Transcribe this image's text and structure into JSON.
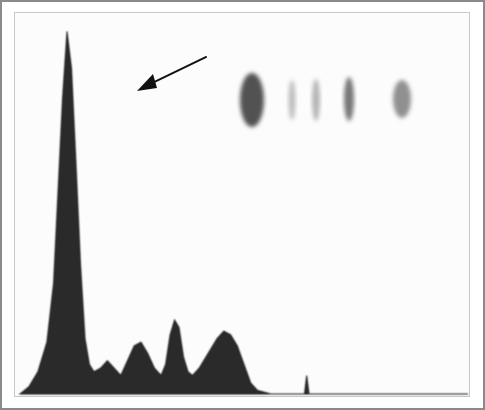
{
  "figure": {
    "peak_fill_color": "#2b2b2b",
    "band_color": "#4a4a4a",
    "arrow_color": "#111111",
    "frame_color": "#8a8a8a"
  },
  "profile_points": [
    [
      0.0,
      0.0
    ],
    [
      0.02,
      0.02
    ],
    [
      0.04,
      0.06
    ],
    [
      0.06,
      0.14
    ],
    [
      0.075,
      0.3
    ],
    [
      0.085,
      0.55
    ],
    [
      0.095,
      0.8
    ],
    [
      0.105,
      0.98
    ],
    [
      0.115,
      0.88
    ],
    [
      0.125,
      0.62
    ],
    [
      0.135,
      0.35
    ],
    [
      0.145,
      0.15
    ],
    [
      0.155,
      0.08
    ],
    [
      0.165,
      0.06
    ],
    [
      0.18,
      0.07
    ],
    [
      0.195,
      0.09
    ],
    [
      0.21,
      0.07
    ],
    [
      0.225,
      0.05
    ],
    [
      0.24,
      0.09
    ],
    [
      0.255,
      0.13
    ],
    [
      0.27,
      0.14
    ],
    [
      0.285,
      0.11
    ],
    [
      0.3,
      0.07
    ],
    [
      0.315,
      0.05
    ],
    [
      0.325,
      0.08
    ],
    [
      0.335,
      0.16
    ],
    [
      0.345,
      0.2
    ],
    [
      0.355,
      0.18
    ],
    [
      0.365,
      0.1
    ],
    [
      0.375,
      0.06
    ],
    [
      0.385,
      0.05
    ],
    [
      0.4,
      0.07
    ],
    [
      0.42,
      0.11
    ],
    [
      0.44,
      0.15
    ],
    [
      0.455,
      0.17
    ],
    [
      0.47,
      0.16
    ],
    [
      0.485,
      0.13
    ],
    [
      0.5,
      0.08
    ],
    [
      0.515,
      0.03
    ],
    [
      0.53,
      0.01
    ],
    [
      0.56,
      0.0
    ],
    [
      0.62,
      0.0
    ],
    [
      0.635,
      0.0
    ],
    [
      0.64,
      0.05
    ],
    [
      0.645,
      0.0
    ],
    [
      0.7,
      0.0
    ],
    [
      1.0,
      0.0
    ]
  ],
  "bands": [
    {
      "intensity": 0.95
    },
    {
      "intensity": 0.35
    },
    {
      "intensity": 0.4
    },
    {
      "intensity": 0.75
    },
    {
      "intensity": 0.6
    }
  ]
}
